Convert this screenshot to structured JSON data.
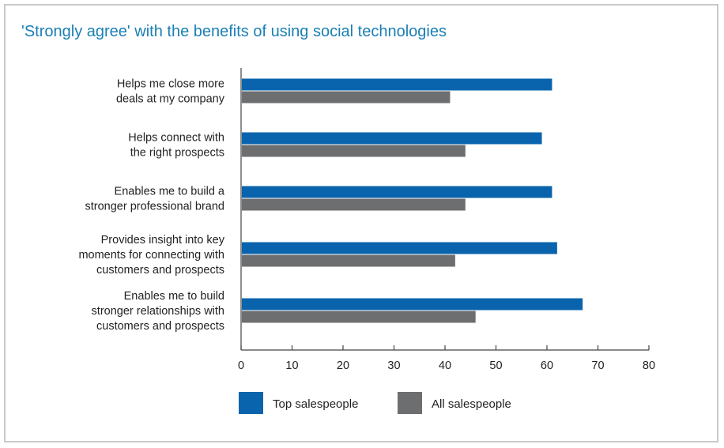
{
  "chart_data": {
    "type": "bar",
    "orientation": "horizontal",
    "title": "'Strongly agree' with the benefits of using social technologies",
    "categories": [
      [
        "Helps me close more",
        "deals at my company"
      ],
      [
        "Helps connect with",
        "the right prospects"
      ],
      [
        "Enables me to build a",
        "stronger professional brand"
      ],
      [
        "Provides insight into key",
        "moments for connecting with",
        "customers and prospects"
      ],
      [
        "Enables me to build",
        "stronger relationships with",
        "customers and prospects"
      ]
    ],
    "series": [
      {
        "name": "Top salespeople",
        "color": "#0a64ad",
        "values": [
          61,
          59,
          61,
          62,
          67
        ]
      },
      {
        "name": "All salespeople",
        "color": "#6d6e70",
        "values": [
          41,
          44,
          44,
          42,
          46
        ]
      }
    ],
    "xlim": [
      0,
      80
    ],
    "xticks": [
      0,
      10,
      20,
      30,
      40,
      50,
      60,
      70,
      80
    ],
    "grid": false,
    "legend": "bottom"
  }
}
